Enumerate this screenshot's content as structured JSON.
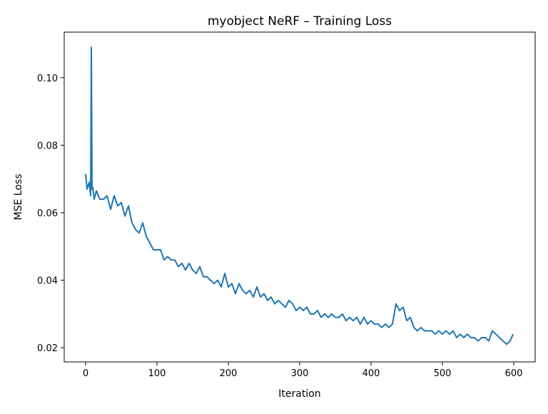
{
  "chart_data": {
    "type": "line",
    "title": "myobject NeRF – Training Loss",
    "xlabel": "Iteration",
    "ylabel": "MSE Loss",
    "xlim": [
      -30,
      630
    ],
    "ylim": [
      0.0158,
      0.1135
    ],
    "xticks": [
      0,
      100,
      200,
      300,
      400,
      500,
      600
    ],
    "xtick_labels": [
      "0",
      "100",
      "200",
      "300",
      "400",
      "500",
      "600"
    ],
    "yticks": [
      0.02,
      0.04,
      0.06,
      0.08,
      0.1
    ],
    "ytick_labels": [
      "0.02",
      "0.04",
      "0.06",
      "0.08",
      "0.10"
    ],
    "grid": false,
    "color": "#1f77b4",
    "series": [
      {
        "x": [
          0,
          2,
          5,
          7,
          8,
          9,
          10,
          12,
          15,
          20,
          25,
          30,
          35,
          40,
          45,
          50,
          55,
          60,
          65,
          70,
          75,
          80,
          85,
          90,
          95,
          100,
          105,
          110,
          115,
          120,
          125,
          130,
          135,
          140,
          145,
          150,
          155,
          160,
          165,
          170,
          175,
          180,
          185,
          190,
          195,
          200,
          205,
          210,
          215,
          220,
          225,
          230,
          235,
          240,
          245,
          250,
          255,
          260,
          265,
          270,
          275,
          280,
          285,
          290,
          295,
          300,
          305,
          310,
          315,
          320,
          325,
          330,
          335,
          340,
          345,
          350,
          355,
          360,
          365,
          370,
          375,
          380,
          385,
          390,
          395,
          400,
          405,
          410,
          415,
          420,
          425,
          430,
          435,
          440,
          445,
          450,
          455,
          460,
          465,
          470,
          475,
          480,
          485,
          490,
          495,
          500,
          505,
          510,
          515,
          520,
          525,
          530,
          535,
          540,
          545,
          550,
          555,
          560,
          565,
          570,
          575,
          580,
          585,
          590,
          595,
          599
        ],
        "y": [
          0.0715,
          0.067,
          0.069,
          0.065,
          0.109,
          0.067,
          0.0675,
          0.064,
          0.0665,
          0.064,
          0.064,
          0.065,
          0.061,
          0.065,
          0.062,
          0.063,
          0.059,
          0.062,
          0.057,
          0.055,
          0.054,
          0.057,
          0.053,
          0.051,
          0.049,
          0.049,
          0.049,
          0.046,
          0.047,
          0.046,
          0.046,
          0.044,
          0.045,
          0.043,
          0.045,
          0.043,
          0.042,
          0.044,
          0.041,
          0.041,
          0.04,
          0.039,
          0.04,
          0.038,
          0.042,
          0.038,
          0.039,
          0.036,
          0.039,
          0.037,
          0.036,
          0.037,
          0.035,
          0.038,
          0.035,
          0.036,
          0.034,
          0.035,
          0.033,
          0.034,
          0.033,
          0.032,
          0.034,
          0.033,
          0.031,
          0.032,
          0.031,
          0.032,
          0.03,
          0.03,
          0.031,
          0.029,
          0.03,
          0.029,
          0.03,
          0.029,
          0.029,
          0.03,
          0.028,
          0.029,
          0.028,
          0.029,
          0.027,
          0.029,
          0.027,
          0.028,
          0.027,
          0.027,
          0.026,
          0.027,
          0.026,
          0.027,
          0.033,
          0.031,
          0.032,
          0.028,
          0.029,
          0.026,
          0.025,
          0.026,
          0.025,
          0.025,
          0.025,
          0.024,
          0.025,
          0.024,
          0.025,
          0.024,
          0.025,
          0.023,
          0.024,
          0.023,
          0.024,
          0.023,
          0.023,
          0.022,
          0.023,
          0.023,
          0.022,
          0.025,
          0.024,
          0.023,
          0.022,
          0.021,
          0.022,
          0.024
        ]
      }
    ]
  }
}
